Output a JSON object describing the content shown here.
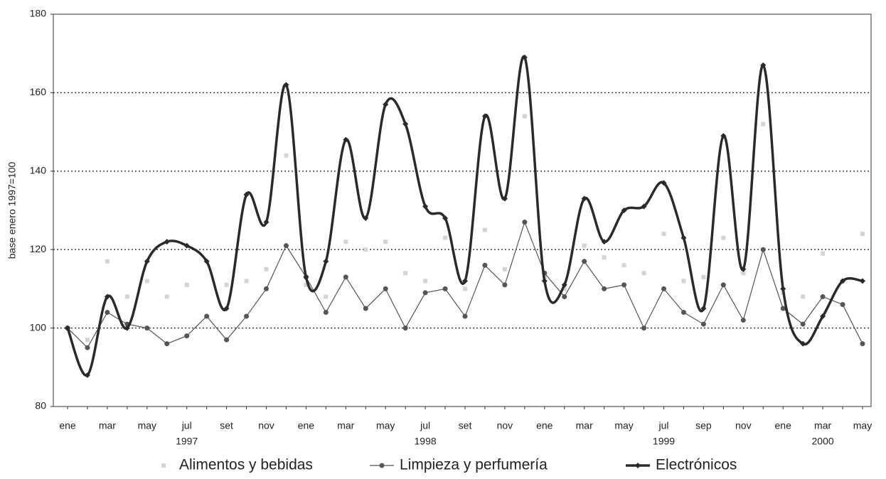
{
  "chart_data": {
    "type": "line",
    "y_label": "base enero 1997=100",
    "categories": [
      "ene",
      null,
      "mar",
      null,
      "may",
      null,
      "jul",
      null,
      "set",
      null,
      "nov",
      null,
      "ene",
      null,
      "mar",
      null,
      "may",
      null,
      "jul",
      null,
      "set",
      null,
      "nov",
      null,
      "ene",
      null,
      "mar",
      null,
      "may",
      null,
      "jul",
      null,
      "sep",
      null,
      "nov",
      null,
      "ene",
      null,
      "mar",
      null,
      "may"
    ],
    "year_labels": [
      "1997",
      "1998",
      "1999",
      "2000"
    ],
    "ylim": [
      80,
      180
    ],
    "yticks": [
      80,
      100,
      120,
      140,
      160,
      180
    ],
    "grid": true,
    "series": [
      {
        "name": "Alimentos y bebidas",
        "color": "#d4d4d4",
        "style": "markers",
        "values": [
          100,
          97,
          117,
          108,
          112,
          108,
          111,
          103,
          111,
          112,
          115,
          144,
          111,
          108,
          122,
          120,
          122,
          114,
          112,
          123,
          110,
          125,
          115,
          154,
          113,
          110,
          121,
          118,
          116,
          114,
          124,
          112,
          113,
          123,
          114,
          152,
          109,
          108,
          119,
          112,
          124
        ]
      },
      {
        "name": "Limpieza y perfumería",
        "color": "#555555",
        "style": "thin",
        "values": [
          100,
          95,
          104,
          101,
          100,
          96,
          98,
          103,
          97,
          103,
          110,
          121,
          113,
          104,
          113,
          105,
          110,
          100,
          109,
          110,
          103,
          116,
          111,
          127,
          114,
          108,
          117,
          110,
          111,
          100,
          110,
          104,
          101,
          111,
          102,
          120,
          105,
          101,
          108,
          106,
          96
        ]
      },
      {
        "name": "Electrónicos",
        "color": "#2a2a2a",
        "style": "thick",
        "values": [
          100,
          88,
          108,
          100,
          117,
          122,
          121,
          117,
          105,
          134,
          127,
          162,
          113,
          117,
          148,
          128,
          157,
          152,
          131,
          128,
          112,
          154,
          133,
          169,
          112,
          111,
          133,
          122,
          130,
          131,
          137,
          123,
          105,
          149,
          115,
          167,
          110,
          96,
          103,
          112,
          112
        ]
      }
    ]
  }
}
